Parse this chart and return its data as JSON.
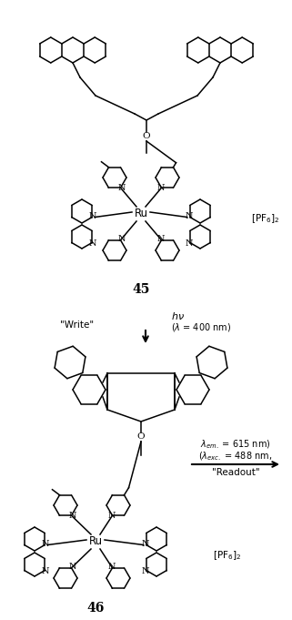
{
  "background_color": "#ffffff",
  "figure_width": 3.21,
  "figure_height": 6.81,
  "dpi": 100,
  "compound_45_label": "45",
  "compound_46_label": "46",
  "pf6_label": "[PF$_6$]$_2$",
  "write_label": "\"Write\"",
  "hv_label": "$h\\nu$",
  "lambda_write": "($\\lambda$ = 400 nm)",
  "readout_label": "\"Readout\"",
  "lambda_exc": "($\\lambda_{exc.}$ = 488 nm,",
  "lambda_em": "$\\lambda_{em.}$ = 615 nm)"
}
